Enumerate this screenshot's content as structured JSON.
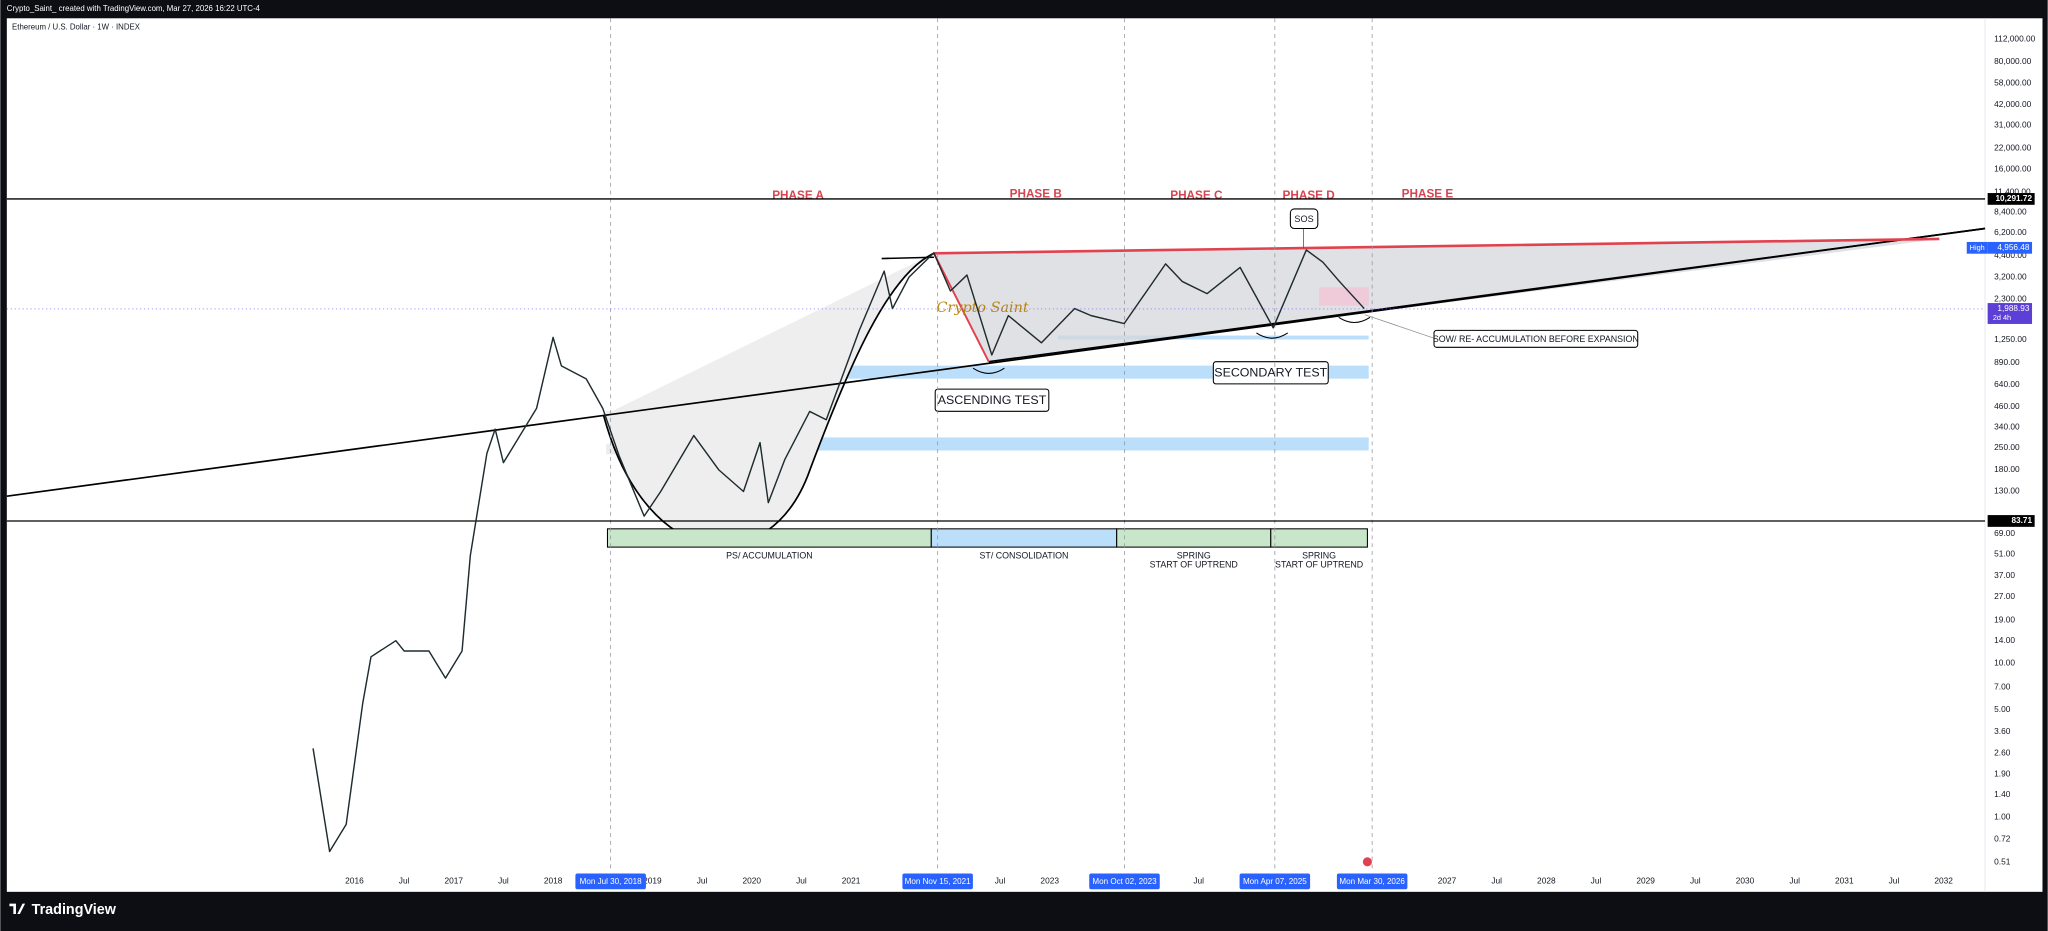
{
  "header": {
    "attribution": "Crypto_Saint_ created with TradingView.com, Mar 27, 2026 16:22 UTC-4",
    "symbol": "Ethereum / U.S. Dollar · 1W · INDEX",
    "brand": "TradingView"
  },
  "chart_data": {
    "type": "line",
    "log_scale": true,
    "grid": false,
    "color": "#1e2b2f",
    "x": [
      "2015-08",
      "2015-10",
      "2015-12",
      "2016-02",
      "2016-03",
      "2016-06",
      "2016-07",
      "2016-10",
      "2016-12",
      "2017-02",
      "2017-03",
      "2017-05",
      "2017-06",
      "2017-07",
      "2017-09",
      "2017-11",
      "2018-01",
      "2018-02",
      "2018-05",
      "2018-07",
      "2018-09",
      "2018-12",
      "2019-02",
      "2019-06",
      "2019-09",
      "2019-12",
      "2020-02",
      "2020-03",
      "2020-05",
      "2020-08",
      "2020-10",
      "2020-12",
      "2021-02",
      "2021-05",
      "2021-06",
      "2021-08",
      "2021-11",
      "2022-01",
      "2022-03",
      "2022-06",
      "2022-08",
      "2022-12",
      "2023-04",
      "2023-06",
      "2023-10",
      "2024-03",
      "2024-05",
      "2024-08",
      "2024-12",
      "2025-04",
      "2025-08",
      "2025-10",
      "2025-12",
      "2026-03"
    ],
    "values": [
      2.8,
      0.6,
      0.9,
      5.5,
      11,
      14,
      12,
      12,
      8,
      12,
      50,
      230,
      330,
      200,
      300,
      450,
      1300,
      850,
      700,
      450,
      220,
      90,
      130,
      300,
      180,
      130,
      270,
      110,
      210,
      430,
      380,
      740,
      1450,
      3500,
      2000,
      3200,
      4600,
      2600,
      3300,
      1000,
      1800,
      1200,
      2000,
      1800,
      1600,
      3900,
      3000,
      2500,
      3700,
      1500,
      4800,
      4000,
      3000,
      2000
    ],
    "xlim": [
      "2012-07",
      "2032-06"
    ],
    "ylim": [
      0.44,
      153000
    ],
    "xticks": [
      {
        "value": "2016-01",
        "label": "2016"
      },
      {
        "value": "2016-07",
        "label": "Jul"
      },
      {
        "value": "2017-01",
        "label": "2017"
      },
      {
        "value": "2017-07",
        "label": "Jul"
      },
      {
        "value": "2018-01",
        "label": "2018"
      },
      {
        "value": "2019-01",
        "label": "2019"
      },
      {
        "value": "2019-07",
        "label": "Jul"
      },
      {
        "value": "2020-01",
        "label": "2020"
      },
      {
        "value": "2020-07",
        "label": "Jul"
      },
      {
        "value": "2021-01",
        "label": "2021"
      },
      {
        "value": "2022-07",
        "label": "Jul"
      },
      {
        "value": "2023-01",
        "label": "2023"
      },
      {
        "value": "2024-07",
        "label": "Jul"
      },
      {
        "value": "2027-01",
        "label": "2027"
      },
      {
        "value": "2027-07",
        "label": "Jul"
      },
      {
        "value": "2028-01",
        "label": "2028"
      },
      {
        "value": "2028-07",
        "label": "Jul"
      },
      {
        "value": "2029-01",
        "label": "2029"
      },
      {
        "value": "2029-07",
        "label": "Jul"
      },
      {
        "value": "2030-01",
        "label": "2030"
      },
      {
        "value": "2030-07",
        "label": "Jul"
      },
      {
        "value": "2031-01",
        "label": "2031"
      },
      {
        "value": "2031-07",
        "label": "Jul"
      },
      {
        "value": "2032-01",
        "label": "2032"
      }
    ],
    "yticks": [
      {
        "value": 0.51,
        "label": "0.51"
      },
      {
        "value": 0.72,
        "label": "0.72"
      },
      {
        "value": 1,
        "label": "1.00"
      },
      {
        "value": 1.4,
        "label": "1.40"
      },
      {
        "value": 1.9,
        "label": "1.90"
      },
      {
        "value": 2.6,
        "label": "2.60"
      },
      {
        "value": 3.6,
        "label": "3.60"
      },
      {
        "value": 5,
        "label": "5.00"
      },
      {
        "value": 7,
        "label": "7.00"
      },
      {
        "value": 10,
        "label": "10.00"
      },
      {
        "value": 14,
        "label": "14.00"
      },
      {
        "value": 19,
        "label": "19.00"
      },
      {
        "value": 27,
        "label": "27.00"
      },
      {
        "value": 37,
        "label": "37.00"
      },
      {
        "value": 51,
        "label": "51.00"
      },
      {
        "value": 69,
        "label": "69.00"
      },
      {
        "value": 130,
        "label": "130.00"
      },
      {
        "value": 180,
        "label": "180.00"
      },
      {
        "value": 250,
        "label": "250.00"
      },
      {
        "value": 340,
        "label": "340.00"
      },
      {
        "value": 460,
        "label": "460.00"
      },
      {
        "value": 640,
        "label": "640.00"
      },
      {
        "value": 890,
        "label": "890.00"
      },
      {
        "value": 1250,
        "label": "1,250.00"
      },
      {
        "value": 2300,
        "label": "2,300.00"
      },
      {
        "value": 3200,
        "label": "3,200.00"
      },
      {
        "value": 4400,
        "label": "4,400.00"
      },
      {
        "value": 6200,
        "label": "6,200.00"
      },
      {
        "value": 8400,
        "label": "8,400.00"
      },
      {
        "value": 11400,
        "label": "11,400.00"
      },
      {
        "value": 16000,
        "label": "16,000.00"
      },
      {
        "value": 22000,
        "label": "22,000.00"
      },
      {
        "value": 31000,
        "label": "31,000.00"
      },
      {
        "value": 42000,
        "label": "42,000.00"
      },
      {
        "value": 58000,
        "label": "58,000.00"
      },
      {
        "value": 80000,
        "label": "80,000.00"
      },
      {
        "value": 112000,
        "label": "112,000.00"
      }
    ],
    "levels": [
      {
        "value": 10291.72,
        "label": "10,291.72"
      },
      {
        "value": 83.71,
        "label": "83.71"
      }
    ],
    "high": {
      "name": "High",
      "value": 4956.48,
      "label": "4,956.48"
    },
    "last_price": {
      "value": 1988.93,
      "label": "1,988.93",
      "countdown": "2d 4h"
    },
    "markers": [
      {
        "value": "2018-07-30",
        "label": "Mon Jul 30, 2018"
      },
      {
        "value": "2021-11-15",
        "label": "Mon Nov 15, 2021"
      },
      {
        "value": "2023-10-02",
        "label": "Mon Oct 02, 2023"
      },
      {
        "value": "2025-04-07",
        "label": "Mon Apr 07, 2025"
      },
      {
        "value": "2026-03-30",
        "label": "Mon Mar 30, 2026"
      }
    ],
    "annotations": {
      "phases": [
        "PHASE A",
        "PHASE B",
        "PHASE C",
        "PHASE D",
        "PHASE E"
      ],
      "sos": "SOS",
      "ascending_test": "ASCENDING TEST",
      "secondary_test": "SECONDARY TEST",
      "sow": "SOW/ RE- ACCUMULATION BEFORE EXPANSION",
      "watermark": "Crypto Saint",
      "zones": [
        {
          "line1": "PS/ ACCUMULATION"
        },
        {
          "line1": "ST/ CONSOLIDATION"
        },
        {
          "line1": "SPRING",
          "line2": "START OF UPTREND"
        },
        {
          "line1": "SPRING",
          "line2": "START OF UPTREND"
        }
      ]
    }
  }
}
